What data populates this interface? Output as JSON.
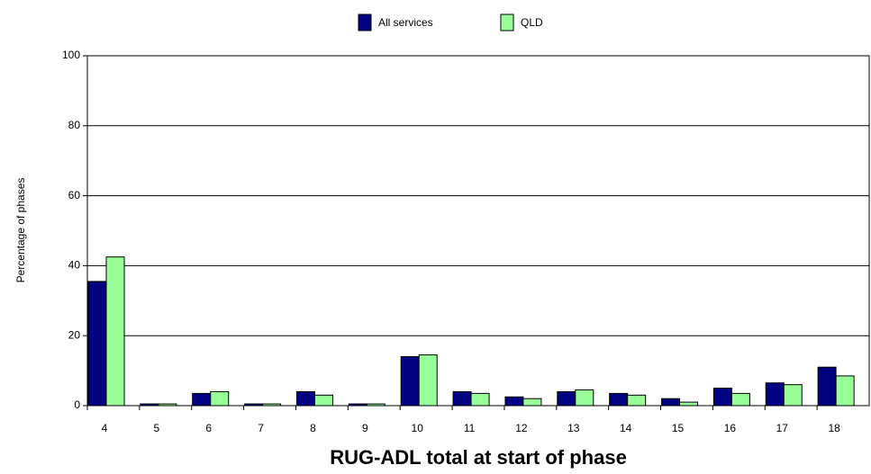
{
  "chart_data": {
    "type": "bar",
    "x_label": "RUG-ADL total at start of phase",
    "y_label": "Percentage of phases",
    "categories": [
      "4",
      "5",
      "6",
      "7",
      "8",
      "9",
      "10",
      "11",
      "12",
      "13",
      "14",
      "15",
      "16",
      "17",
      "18"
    ],
    "series": [
      {
        "name": "All services",
        "color": "#000080",
        "values": [
          35.5,
          0.5,
          3.5,
          0.5,
          4,
          0.5,
          14,
          4,
          2.5,
          4,
          3.5,
          2,
          5,
          6.5,
          11
        ]
      },
      {
        "name": "QLD",
        "color": "#99ff99",
        "values": [
          42.5,
          0.5,
          4,
          0.5,
          3,
          0.5,
          14.5,
          3.5,
          2,
          4.5,
          3,
          1,
          3.5,
          6,
          8.5
        ]
      }
    ],
    "ylim": [
      0,
      100
    ],
    "yticks": [
      0,
      20,
      40,
      60,
      80,
      100
    ],
    "grid": true,
    "legend": "top"
  }
}
